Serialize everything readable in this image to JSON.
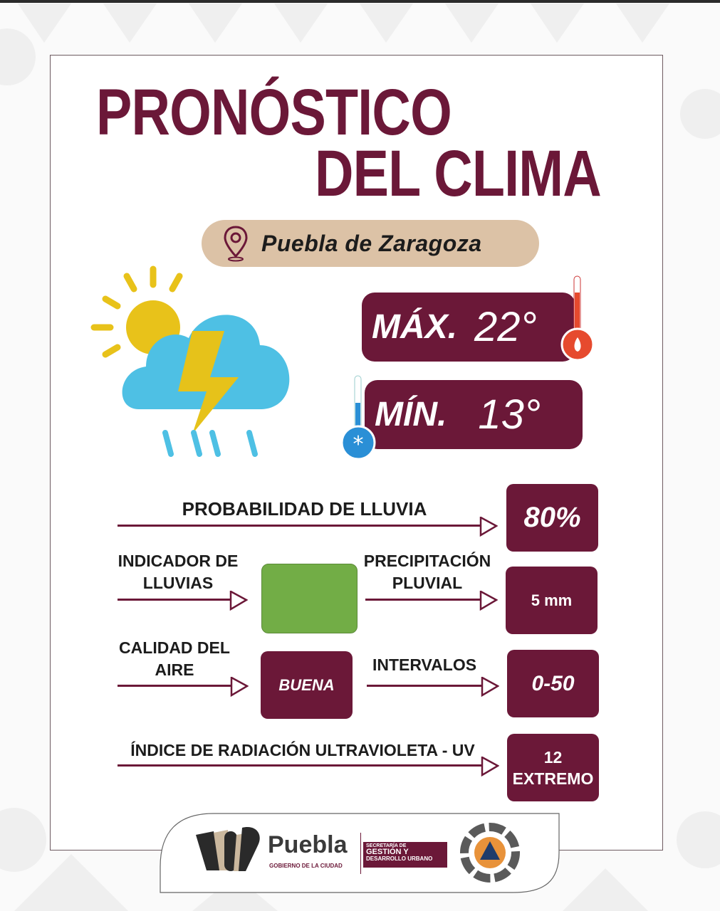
{
  "title": {
    "line1": "PRONÓSTICO",
    "line2": "DEL CLIMA"
  },
  "location": {
    "name": "Puebla de Zaragoza",
    "icon": "map-pin-icon"
  },
  "weather_icon": "sun-cloud-storm-rain-icon",
  "temperature": {
    "max_label": "MÁX.",
    "max_value": "22°",
    "min_label": "MÍN.",
    "min_value": "13°"
  },
  "rows": {
    "rain_probability": {
      "label": "PROBABILIDAD DE LLUVIA",
      "value": "80%"
    },
    "rain_indicator": {
      "label_line1": "INDICADOR DE",
      "label_line2": "LLUVIAS",
      "color": "#72ad46"
    },
    "precipitation": {
      "label_line1": "PRECIPITACIÓN",
      "label_line2": "PLUVIAL",
      "value": "5 mm"
    },
    "air_quality": {
      "label_line1": "CALIDAD DEL",
      "label_line2": "AIRE",
      "value": "BUENA"
    },
    "intervals": {
      "label": "INTERVALOS",
      "value": "0-50"
    },
    "uv": {
      "label": "ÍNDICE DE RADIACIÓN ULTRAVIOLETA - UV",
      "value_line1": "12",
      "value_line2": "EXTREMO"
    }
  },
  "footer": {
    "brand": "Puebla",
    "brand_sub": "GOBIERNO DE LA CIUDAD",
    "secretaria_line1": "SECRETARÍA DE",
    "secretaria_line2": "GESTIÓN Y",
    "secretaria_line3": "DESARROLLO URBANO",
    "civil_protection_icon": "proteccion-civil-logo"
  },
  "colors": {
    "primary": "#6b1838",
    "location_pill": "#dcc2a6",
    "cloud": "#4ec0e4",
    "sun": "#e8c21a",
    "bolt": "#e6c21a"
  }
}
